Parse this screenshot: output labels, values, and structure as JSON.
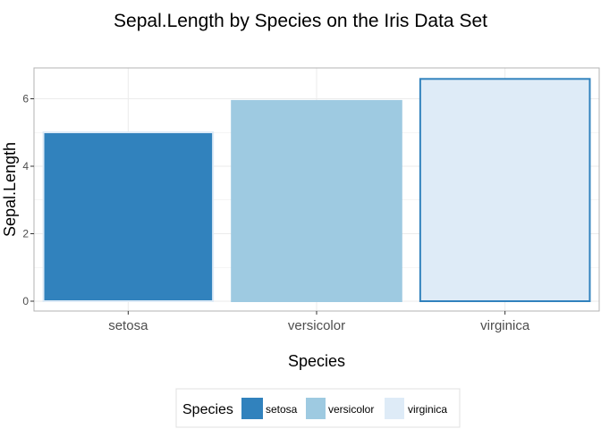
{
  "chart_data": {
    "type": "bar",
    "title": "Sepal.Length by Species on the Iris Data Set",
    "xlabel": "Species",
    "ylabel": "Sepal.Length",
    "categories": [
      "setosa",
      "versicolor",
      "virginica"
    ],
    "values": [
      5.006,
      5.936,
      6.588
    ],
    "ylim": [
      0,
      6.9
    ],
    "yticks": [
      0,
      2,
      4,
      6
    ],
    "grid": true,
    "legend": {
      "title": "Species",
      "position": "bottom",
      "entries": [
        "setosa",
        "versicolor",
        "virginica"
      ]
    },
    "colors": {
      "fills": [
        "#3182bd",
        "#9ecae1",
        "#deebf7"
      ],
      "outlines": [
        "#deebf7",
        "#9ecae1",
        "#3182bd"
      ],
      "grid": "#ebebeb",
      "panel_border": "#b3b3b3",
      "text": "#4d4d4d"
    }
  }
}
